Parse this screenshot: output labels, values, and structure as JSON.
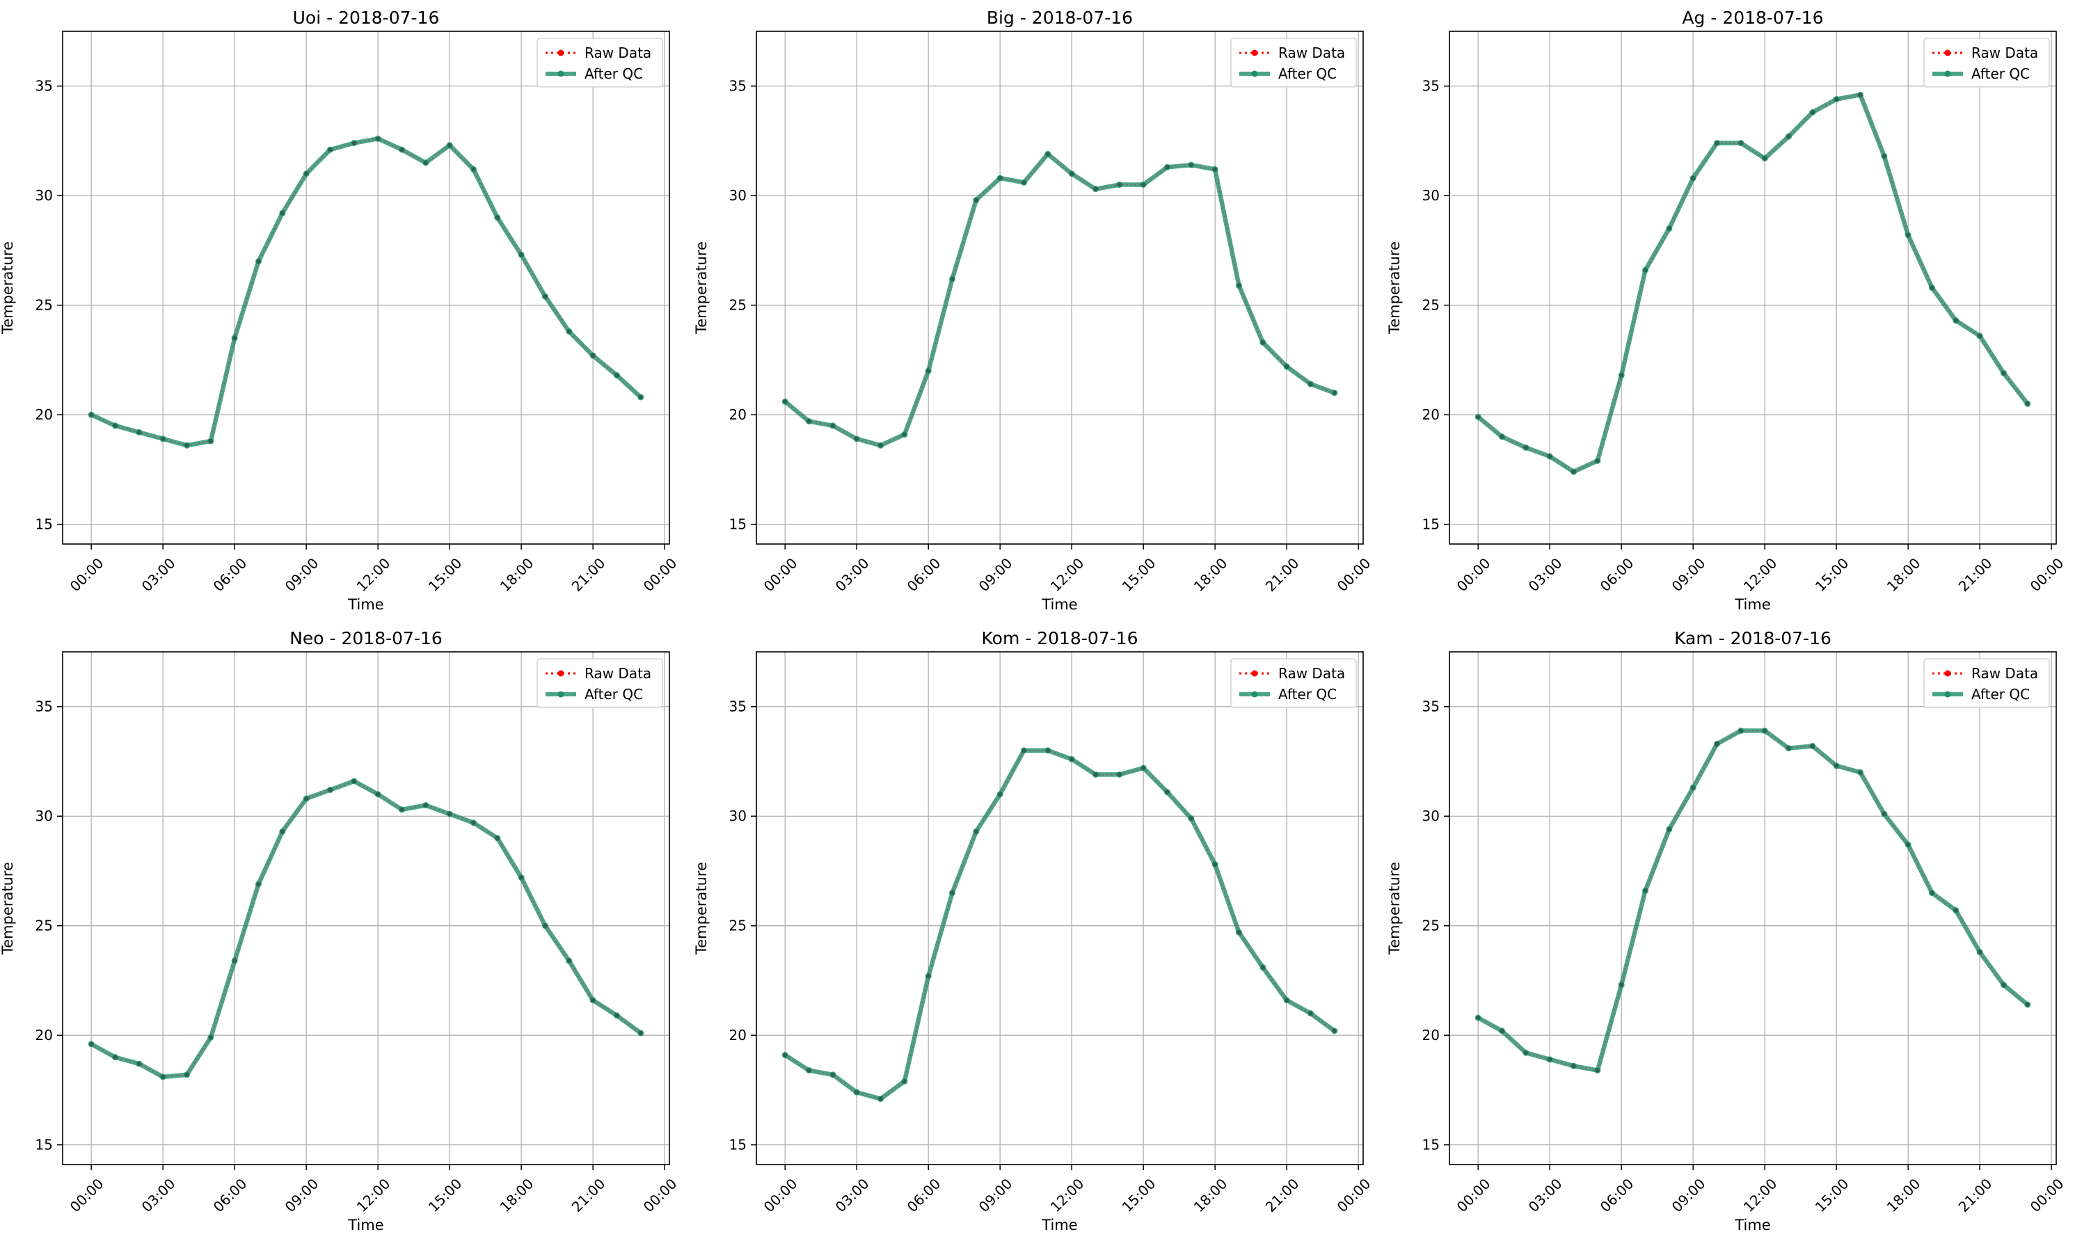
{
  "figure": {
    "raw_color": "#ff0000",
    "qc_color": "#1f8f6a"
  },
  "chart_data": [
    {
      "type": "line",
      "title": "Uoi - 2018-07-16",
      "xlabel": "Time",
      "ylabel": "Temperature",
      "x_ticks": [
        "00:00",
        "03:00",
        "06:00",
        "09:00",
        "12:00",
        "15:00",
        "18:00",
        "21:00",
        "00:00"
      ],
      "y_ticks": [
        15,
        20,
        25,
        30,
        35
      ],
      "xlim": [
        -1.2,
        24.2
      ],
      "ylim": [
        14.1,
        37.5
      ],
      "grid": true,
      "legend": "upper-right",
      "x_hours": [
        0,
        1,
        2,
        3,
        4,
        5,
        6,
        7,
        8,
        9,
        10,
        11,
        12,
        13,
        14,
        15,
        16,
        17,
        18,
        19,
        20,
        21,
        22,
        23
      ],
      "series": [
        {
          "name": "Raw Data",
          "values": [
            20.0,
            19.5,
            19.2,
            18.9,
            18.6,
            18.8,
            23.5,
            27.0,
            29.2,
            31.0,
            32.1,
            32.4,
            32.6,
            32.1,
            31.5,
            32.3,
            31.2,
            29.0,
            27.3,
            25.4,
            23.8,
            22.7,
            21.8,
            20.8
          ]
        },
        {
          "name": "After QC",
          "values": [
            20.0,
            19.5,
            19.2,
            18.9,
            18.6,
            18.8,
            23.5,
            27.0,
            29.2,
            31.0,
            32.1,
            32.4,
            32.6,
            32.1,
            31.5,
            32.3,
            31.2,
            29.0,
            27.3,
            25.4,
            23.8,
            22.7,
            21.8,
            20.8
          ]
        }
      ]
    },
    {
      "type": "line",
      "title": "Big - 2018-07-16",
      "xlabel": "Time",
      "ylabel": "Temperature",
      "x_ticks": [
        "00:00",
        "03:00",
        "06:00",
        "09:00",
        "12:00",
        "15:00",
        "18:00",
        "21:00",
        "00:00"
      ],
      "y_ticks": [
        15,
        20,
        25,
        30,
        35
      ],
      "xlim": [
        -1.2,
        24.2
      ],
      "ylim": [
        14.1,
        37.5
      ],
      "grid": true,
      "legend": "upper-right",
      "x_hours": [
        0,
        1,
        2,
        3,
        4,
        5,
        6,
        7,
        8,
        9,
        10,
        11,
        12,
        13,
        14,
        15,
        16,
        17,
        18,
        19,
        20,
        21,
        22,
        23
      ],
      "series": [
        {
          "name": "Raw Data",
          "values": [
            20.6,
            19.7,
            19.5,
            18.9,
            18.6,
            19.1,
            22.0,
            26.2,
            29.8,
            30.8,
            30.6,
            31.9,
            31.0,
            30.3,
            30.5,
            30.5,
            31.3,
            31.4,
            31.2,
            25.9,
            23.3,
            22.2,
            21.4,
            21.0
          ]
        },
        {
          "name": "After QC",
          "values": [
            20.6,
            19.7,
            19.5,
            18.9,
            18.6,
            19.1,
            22.0,
            26.2,
            29.8,
            30.8,
            30.6,
            31.9,
            31.0,
            30.3,
            30.5,
            30.5,
            31.3,
            31.4,
            31.2,
            25.9,
            23.3,
            22.2,
            21.4,
            21.0
          ]
        }
      ]
    },
    {
      "type": "line",
      "title": "Ag - 2018-07-16",
      "xlabel": "Time",
      "ylabel": "Temperature",
      "x_ticks": [
        "00:00",
        "03:00",
        "06:00",
        "09:00",
        "12:00",
        "15:00",
        "18:00",
        "21:00",
        "00:00"
      ],
      "y_ticks": [
        15,
        20,
        25,
        30,
        35
      ],
      "xlim": [
        -1.2,
        24.2
      ],
      "ylim": [
        14.1,
        37.5
      ],
      "grid": true,
      "legend": "upper-right",
      "x_hours": [
        0,
        1,
        2,
        3,
        4,
        5,
        6,
        7,
        8,
        9,
        10,
        11,
        12,
        13,
        14,
        15,
        16,
        17,
        18,
        19,
        20,
        21,
        22,
        23
      ],
      "series": [
        {
          "name": "Raw Data",
          "values": [
            19.9,
            19.0,
            18.5,
            18.1,
            17.4,
            17.9,
            21.8,
            26.6,
            28.5,
            30.8,
            32.4,
            32.4,
            31.7,
            32.7,
            33.8,
            34.4,
            34.6,
            31.8,
            28.2,
            25.8,
            24.3,
            23.6,
            21.9,
            20.5
          ]
        },
        {
          "name": "After QC",
          "values": [
            19.9,
            19.0,
            18.5,
            18.1,
            17.4,
            17.9,
            21.8,
            26.6,
            28.5,
            30.8,
            32.4,
            32.4,
            31.7,
            32.7,
            33.8,
            34.4,
            34.6,
            31.8,
            28.2,
            25.8,
            24.3,
            23.6,
            21.9,
            20.5
          ]
        }
      ]
    },
    {
      "type": "line",
      "title": "Neo - 2018-07-16",
      "xlabel": "Time",
      "ylabel": "Temperature",
      "x_ticks": [
        "00:00",
        "03:00",
        "06:00",
        "09:00",
        "12:00",
        "15:00",
        "18:00",
        "21:00",
        "00:00"
      ],
      "y_ticks": [
        15,
        20,
        25,
        30,
        35
      ],
      "xlim": [
        -1.2,
        24.2
      ],
      "ylim": [
        14.1,
        37.5
      ],
      "grid": true,
      "legend": "upper-right",
      "x_hours": [
        0,
        1,
        2,
        3,
        4,
        5,
        6,
        7,
        8,
        9,
        10,
        11,
        12,
        13,
        14,
        15,
        16,
        17,
        18,
        19,
        20,
        21,
        22,
        23
      ],
      "series": [
        {
          "name": "Raw Data",
          "values": [
            19.6,
            19.0,
            18.7,
            18.1,
            18.2,
            19.9,
            23.4,
            26.9,
            29.3,
            30.8,
            31.2,
            31.6,
            31.0,
            30.3,
            30.5,
            30.1,
            29.7,
            29.0,
            27.2,
            25.0,
            23.4,
            21.6,
            20.9,
            20.1
          ]
        },
        {
          "name": "After QC",
          "values": [
            19.6,
            19.0,
            18.7,
            18.1,
            18.2,
            19.9,
            23.4,
            26.9,
            29.3,
            30.8,
            31.2,
            31.6,
            31.0,
            30.3,
            30.5,
            30.1,
            29.7,
            29.0,
            27.2,
            25.0,
            23.4,
            21.6,
            20.9,
            20.1
          ]
        }
      ]
    },
    {
      "type": "line",
      "title": "Kom - 2018-07-16",
      "xlabel": "Time",
      "ylabel": "Temperature",
      "x_ticks": [
        "00:00",
        "03:00",
        "06:00",
        "09:00",
        "12:00",
        "15:00",
        "18:00",
        "21:00",
        "00:00"
      ],
      "y_ticks": [
        15,
        20,
        25,
        30,
        35
      ],
      "xlim": [
        -1.2,
        24.2
      ],
      "ylim": [
        14.1,
        37.5
      ],
      "grid": true,
      "legend": "upper-right",
      "x_hours": [
        0,
        1,
        2,
        3,
        4,
        5,
        6,
        7,
        8,
        9,
        10,
        11,
        12,
        13,
        14,
        15,
        16,
        17,
        18,
        19,
        20,
        21,
        22,
        23
      ],
      "series": [
        {
          "name": "Raw Data",
          "values": [
            19.1,
            18.4,
            18.2,
            17.4,
            17.1,
            17.9,
            22.7,
            26.5,
            29.3,
            31.0,
            33.0,
            33.0,
            32.6,
            31.9,
            31.9,
            32.2,
            31.1,
            29.9,
            27.8,
            24.7,
            23.1,
            21.6,
            21.0,
            20.2
          ]
        },
        {
          "name": "After QC",
          "values": [
            19.1,
            18.4,
            18.2,
            17.4,
            17.1,
            17.9,
            22.7,
            26.5,
            29.3,
            31.0,
            33.0,
            33.0,
            32.6,
            31.9,
            31.9,
            32.2,
            31.1,
            29.9,
            27.8,
            24.7,
            23.1,
            21.6,
            21.0,
            20.2
          ]
        }
      ]
    },
    {
      "type": "line",
      "title": "Kam - 2018-07-16",
      "xlabel": "Time",
      "ylabel": "Temperature",
      "x_ticks": [
        "00:00",
        "03:00",
        "06:00",
        "09:00",
        "12:00",
        "15:00",
        "18:00",
        "21:00",
        "00:00"
      ],
      "y_ticks": [
        15,
        20,
        25,
        30,
        35
      ],
      "xlim": [
        -1.2,
        24.2
      ],
      "ylim": [
        14.1,
        37.5
      ],
      "grid": true,
      "legend": "upper-right",
      "x_hours": [
        0,
        1,
        2,
        3,
        4,
        5,
        6,
        7,
        8,
        9,
        10,
        11,
        12,
        13,
        14,
        15,
        16,
        17,
        18,
        19,
        20,
        21,
        22,
        23
      ],
      "series": [
        {
          "name": "Raw Data",
          "values": [
            20.8,
            20.2,
            19.2,
            18.9,
            18.6,
            18.4,
            22.3,
            26.6,
            29.4,
            31.3,
            33.3,
            33.9,
            33.9,
            33.1,
            33.2,
            32.3,
            32.0,
            30.1,
            28.7,
            26.5,
            25.7,
            23.8,
            22.3,
            21.4
          ]
        },
        {
          "name": "After QC",
          "values": [
            20.8,
            20.2,
            19.2,
            18.9,
            18.6,
            18.4,
            22.3,
            26.6,
            29.4,
            31.3,
            33.3,
            33.9,
            33.9,
            33.1,
            33.2,
            32.3,
            32.0,
            30.1,
            28.7,
            26.5,
            25.7,
            23.8,
            22.3,
            21.4
          ]
        }
      ]
    }
  ]
}
